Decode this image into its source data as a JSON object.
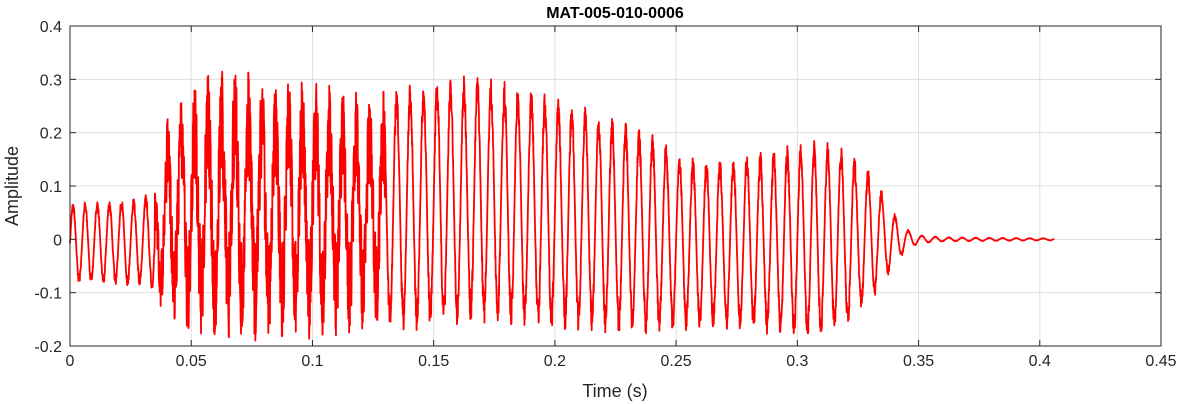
{
  "chart_data": {
    "type": "line",
    "title": "MAT-005-010-0006",
    "xlabel": "Time (s)",
    "ylabel": "Amplitude",
    "xlim": [
      0,
      0.45
    ],
    "ylim": [
      -0.2,
      0.4
    ],
    "xticks": [
      0,
      0.05,
      0.1,
      0.15,
      0.2,
      0.25,
      0.3,
      0.35,
      0.4,
      0.45
    ],
    "xtick_labels": [
      "0",
      "0.05",
      "0.1",
      "0.15",
      "0.2",
      "0.25",
      "0.3",
      "0.35",
      "0.4",
      "0.45"
    ],
    "yticks": [
      -0.2,
      -0.1,
      0,
      0.1,
      0.2,
      0.3,
      0.4
    ],
    "ytick_labels": [
      "-0.2",
      "-0.1",
      "0",
      "0.1",
      "0.2",
      "0.3",
      "0.4"
    ],
    "grid": true,
    "series": [
      {
        "color": "#ff0000",
        "x_range": [
          0,
          0.406
        ],
        "envelope": {
          "t": [
            0,
            0.015,
            0.03,
            0.035,
            0.04,
            0.05,
            0.065,
            0.08,
            0.1,
            0.12,
            0.15,
            0.17,
            0.2,
            0.23,
            0.26,
            0.28,
            0.3,
            0.31,
            0.32,
            0.33,
            0.34,
            0.345,
            0.35,
            0.36,
            0.38,
            0.406
          ],
          "upper": [
            0.07,
            0.075,
            0.08,
            0.1,
            0.24,
            0.3,
            0.33,
            0.31,
            0.3,
            0.28,
            0.3,
            0.31,
            0.27,
            0.22,
            0.15,
            0.16,
            0.18,
            0.19,
            0.17,
            0.13,
            0.05,
            0.02,
            0.008,
            0.004,
            0.003,
            0.002
          ],
          "lower": [
            -0.085,
            -0.085,
            -0.09,
            -0.1,
            -0.17,
            -0.19,
            -0.2,
            -0.19,
            -0.19,
            -0.18,
            -0.17,
            -0.16,
            -0.17,
            -0.18,
            -0.17,
            -0.17,
            -0.19,
            -0.19,
            -0.17,
            -0.12,
            -0.05,
            -0.02,
            -0.008,
            -0.004,
            -0.003,
            -0.002
          ]
        }
      }
    ]
  }
}
